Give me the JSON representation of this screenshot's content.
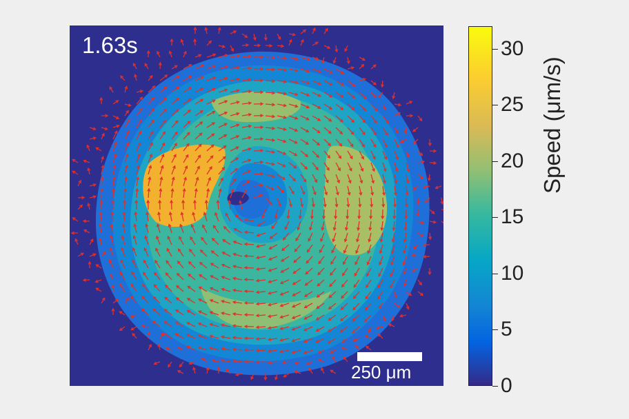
{
  "frame": {
    "time": "1.63s",
    "scale_bar_label": "250 μm"
  },
  "colorbar": {
    "label": "Speed (μm/s)",
    "min": 0,
    "max": 32,
    "ticks": [
      "0",
      "5",
      "10",
      "15",
      "20",
      "25",
      "30"
    ],
    "colormap": "parula"
  },
  "colors": {
    "background": "#2e2e8f",
    "arrows": "#e0302a",
    "text_on_image": "#ffffff"
  }
}
